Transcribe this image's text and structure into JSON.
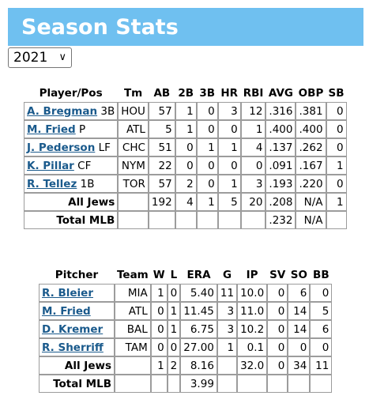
{
  "header": {
    "title": "Season Stats"
  },
  "year_select": {
    "value": "2021",
    "chevron": "chevron-down-icon"
  },
  "batting": {
    "headers": [
      "Player/Pos",
      "Tm",
      "AB",
      "2B",
      "3B",
      "HR",
      "RBI",
      "AVG",
      "OBP",
      "SB"
    ],
    "rows": [
      {
        "name": "A. Bregman",
        "pos": "3B",
        "tm": "HOU",
        "ab": "57",
        "b2": "1",
        "b3": "0",
        "hr": "3",
        "rbi": "12",
        "avg": ".316",
        "obp": ".381",
        "sb": "0"
      },
      {
        "name": "M. Fried",
        "pos": "P",
        "tm": "ATL",
        "ab": "5",
        "b2": "1",
        "b3": "0",
        "hr": "0",
        "rbi": "1",
        "avg": ".400",
        "obp": ".400",
        "sb": "0"
      },
      {
        "name": "J. Pederson",
        "pos": "LF",
        "tm": "CHC",
        "ab": "51",
        "b2": "0",
        "b3": "1",
        "hr": "1",
        "rbi": "4",
        "avg": ".137",
        "obp": ".262",
        "sb": "0"
      },
      {
        "name": "K. Pillar",
        "pos": "CF",
        "tm": "NYM",
        "ab": "22",
        "b2": "0",
        "b3": "0",
        "hr": "0",
        "rbi": "0",
        "avg": ".091",
        "obp": ".167",
        "sb": "1"
      },
      {
        "name": "R. Tellez",
        "pos": "1B",
        "tm": "TOR",
        "ab": "57",
        "b2": "2",
        "b3": "0",
        "hr": "1",
        "rbi": "3",
        "avg": ".193",
        "obp": ".220",
        "sb": "0"
      }
    ],
    "all_jews": {
      "label": "All Jews",
      "ab": "192",
      "b2": "4",
      "b3": "1",
      "hr": "5",
      "rbi": "20",
      "avg": ".208",
      "obp": "N/A",
      "sb": "1"
    },
    "total_mlb": {
      "label": "Total MLB",
      "avg": ".232",
      "obp": "N/A"
    }
  },
  "pitching": {
    "headers": [
      "Pitcher",
      "Team",
      "W",
      "L",
      "ERA",
      "G",
      "IP",
      "SV",
      "SO",
      "BB"
    ],
    "rows": [
      {
        "name": "R. Bleier",
        "team": "MIA",
        "w": "1",
        "l": "0",
        "era": "5.40",
        "g": "11",
        "ip": "10.0",
        "sv": "0",
        "so": "6",
        "bb": "0"
      },
      {
        "name": "M. Fried",
        "team": "ATL",
        "w": "0",
        "l": "1",
        "era": "11.45",
        "g": "3",
        "ip": "11.0",
        "sv": "0",
        "so": "14",
        "bb": "5"
      },
      {
        "name": "D. Kremer",
        "team": "BAL",
        "w": "0",
        "l": "1",
        "era": "6.75",
        "g": "3",
        "ip": "10.2",
        "sv": "0",
        "so": "14",
        "bb": "6"
      },
      {
        "name": "R. Sherriff",
        "team": "TAM",
        "w": "0",
        "l": "0",
        "era": "27.00",
        "g": "1",
        "ip": "0.1",
        "sv": "0",
        "so": "0",
        "bb": "0"
      }
    ],
    "all_jews": {
      "label": "All Jews",
      "w": "1",
      "l": "2",
      "era": "8.16",
      "ip": "32.0",
      "sv": "0",
      "so": "34",
      "bb": "11"
    },
    "total_mlb": {
      "label": "Total MLB",
      "era": "3.99"
    }
  }
}
